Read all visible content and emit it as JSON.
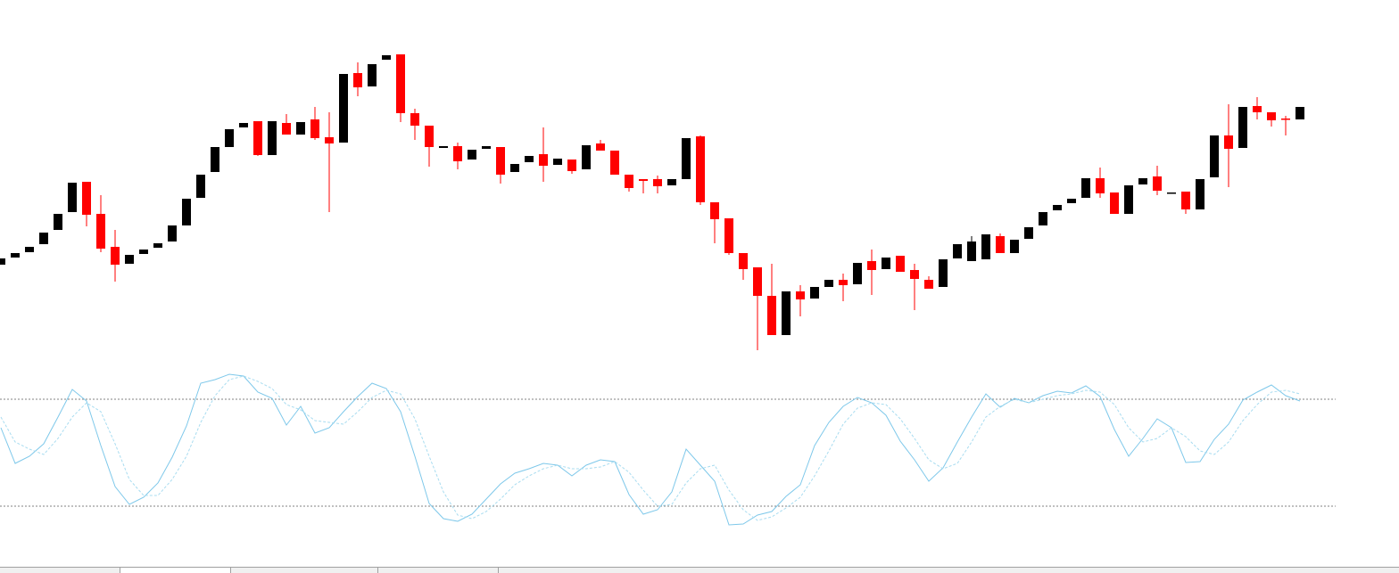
{
  "chart_data": [
    {
      "type": "candlestick",
      "up_color": "#000000",
      "down_color": "#ff0000",
      "ylim": [
        0,
        360
      ],
      "open": [
        103,
        111,
        117,
        126,
        142,
        162,
        196,
        160,
        123,
        104,
        115,
        122,
        129,
        147,
        178,
        207,
        235,
        257,
        264,
        226,
        262,
        249,
        266,
        246,
        240,
        318,
        303,
        333,
        339,
        273,
        259,
        234,
        236,
        221,
        233,
        235,
        207,
        218,
        227,
        215,
        221,
        210,
        239,
        231,
        204,
        199,
        199,
        192,
        199,
        247,
        173,
        155,
        116,
        100,
        68,
        24,
        73,
        65,
        78,
        86,
        81,
        107,
        98,
        113,
        97,
        86,
        78,
        110,
        107,
        109,
        135,
        116,
        132,
        147,
        164,
        172,
        178,
        200,
        184,
        160,
        193,
        202,
        183,
        185,
        165,
        201,
        248,
        234,
        281,
        274,
        267,
        266
      ],
      "high": [
        110,
        116,
        123,
        139,
        160,
        195,
        196,
        181,
        142,
        114,
        120,
        127,
        147,
        177,
        204,
        235,
        255,
        262,
        264,
        264,
        272,
        263,
        280,
        274,
        317,
        330,
        328,
        338,
        339,
        278,
        259,
        236,
        240,
        232,
        236,
        235,
        216,
        225,
        257,
        222,
        221,
        237,
        243,
        231,
        204,
        199,
        203,
        199,
        245,
        248,
        173,
        155,
        116,
        100,
        104,
        73,
        80,
        78,
        86,
        93,
        105,
        120,
        111,
        113,
        104,
        90,
        109,
        126,
        135,
        137,
        138,
        131,
        145,
        162,
        170,
        177,
        200,
        212,
        184,
        192,
        200,
        214,
        184,
        185,
        199,
        248,
        283,
        280,
        291,
        274,
        270,
        280
      ],
      "low": [
        103,
        111,
        117,
        126,
        142,
        162,
        146,
        117,
        84,
        104,
        115,
        122,
        129,
        147,
        178,
        207,
        235,
        257,
        225,
        226,
        249,
        249,
        243,
        162,
        240,
        292,
        303,
        333,
        263,
        243,
        213,
        234,
        210,
        221,
        233,
        194,
        207,
        218,
        196,
        215,
        205,
        210,
        231,
        204,
        185,
        183,
        183,
        192,
        199,
        170,
        127,
        114,
        86,
        7,
        24,
        24,
        45,
        65,
        78,
        62,
        81,
        69,
        98,
        95,
        52,
        76,
        78,
        110,
        107,
        109,
        116,
        116,
        132,
        147,
        164,
        172,
        178,
        178,
        160,
        160,
        193,
        181,
        183,
        160,
        165,
        201,
        190,
        234,
        266,
        258,
        248,
        266
      ],
      "close": [
        110,
        116,
        123,
        139,
        160,
        195,
        159,
        121,
        103,
        114,
        120,
        127,
        147,
        177,
        204,
        235,
        255,
        262,
        226,
        264,
        249,
        263,
        245,
        239,
        317,
        302,
        328,
        338,
        273,
        259,
        235,
        236,
        219,
        232,
        236,
        204,
        216,
        225,
        214,
        222,
        208,
        237,
        231,
        204,
        189,
        197,
        191,
        199,
        245,
        173,
        154,
        116,
        98,
        68,
        24,
        73,
        64,
        78,
        86,
        80,
        105,
        97,
        111,
        95,
        87,
        76,
        109,
        126,
        129,
        137,
        116,
        131,
        145,
        162,
        170,
        177,
        200,
        183,
        160,
        192,
        200,
        186,
        184,
        165,
        199,
        248,
        233,
        280,
        274,
        265,
        266,
        280
      ]
    },
    {
      "type": "line",
      "ylim": [
        0,
        100
      ],
      "levels": [
        20,
        80
      ],
      "level_color": "#808080",
      "series": [
        {
          "color": "#7ec8ea",
          "values": [
            64,
            44,
            48,
            55,
            70,
            85.5,
            79,
            54,
            31,
            21,
            25,
            33,
            47.5,
            65,
            89,
            91,
            94,
            93,
            84,
            80.5,
            65.5,
            76,
            61,
            64,
            73,
            81.5,
            89,
            86,
            73,
            48,
            21.5,
            13,
            11.5,
            15.5,
            24,
            32.5,
            38.5,
            41,
            44,
            43,
            37,
            43,
            46,
            45,
            26.5,
            15.5,
            18,
            28,
            52,
            43,
            34,
            9.5,
            10,
            15,
            17,
            25.5,
            32,
            54,
            67,
            76,
            81,
            78,
            71,
            56.5,
            46,
            34,
            41.5,
            56,
            70,
            83,
            75.5,
            80.5,
            78,
            82,
            84.5,
            83.5,
            87.5,
            81.5,
            63,
            48,
            58,
            69,
            64,
            44.5,
            45,
            57.5,
            66,
            79.5,
            84,
            88,
            82,
            79
          ]
        },
        {
          "color": "#a8dcf0",
          "dashed": true,
          "values": [
            70,
            56,
            52,
            49,
            58,
            70,
            78,
            73,
            55,
            35,
            26,
            26,
            35,
            48,
            67,
            82,
            91,
            93,
            90,
            86,
            77,
            74,
            68,
            67,
            66,
            73,
            81,
            85,
            83,
            69,
            48,
            28,
            15,
            13,
            17,
            24,
            32,
            37,
            41,
            43,
            41,
            41,
            42,
            45,
            39,
            29,
            20,
            21,
            33,
            41,
            43,
            29,
            18,
            12,
            14,
            19,
            25,
            37,
            51,
            66,
            75,
            78,
            77,
            69,
            58,
            46,
            41,
            44,
            56,
            70,
            76,
            80,
            78,
            80,
            82,
            83,
            85,
            84,
            77,
            64,
            56,
            58,
            64,
            59,
            51,
            49,
            56,
            68,
            77,
            84,
            85,
            83
          ]
        }
      ]
    }
  ]
}
